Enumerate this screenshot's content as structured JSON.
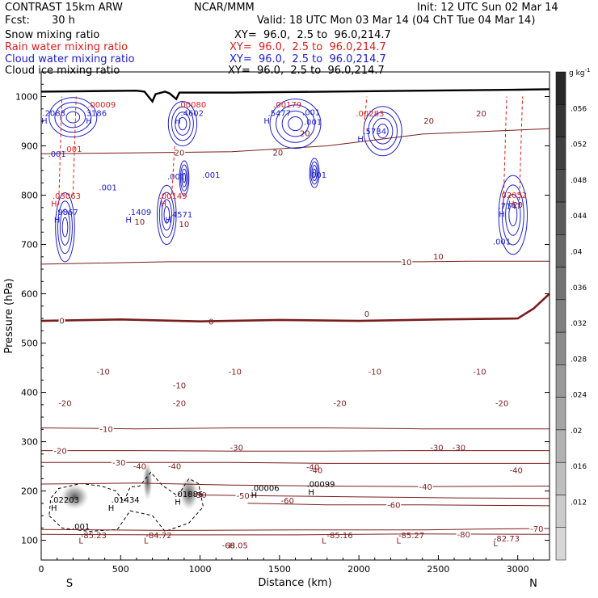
{
  "header": {
    "model": "CONTRAST 15km ARW",
    "center": "NCAR/MMM",
    "init": "Init: 12 UTC Sun 02 Mar 14",
    "fcst_label": "Fcst:",
    "fcst_value": "30 h",
    "valid": "Valid: 18 UTC Mon 03 Mar 14 (04 ChT Tue 04 Mar 14)"
  },
  "legend": [
    {
      "field": "Snow mixing ratio",
      "xy": "XY=  96.0,  2.5 to  96.0,214.7",
      "color": "#000000"
    },
    {
      "field": "Rain water mixing ratio",
      "xy": "XY=  96.0,  2.5 to  96.0,214.7",
      "color": "#d81e1e"
    },
    {
      "field": "Cloud water mixing ratio",
      "xy": "XY=  96.0,  2.5 to  96.0,214.7",
      "color": "#2020c8"
    },
    {
      "field": "Cloud ice mixing ratio",
      "xy": "XY=  96.0,  2.5 to  96.0,214.7",
      "color": "#000000"
    }
  ],
  "colorbar": {
    "unit": "g kg",
    "unit_exp": "-1",
    "labels": [
      ".056",
      ".052",
      ".048",
      ".044",
      ".04",
      ".036",
      ".032",
      ".028",
      ".024",
      ".02",
      ".016",
      ".012"
    ]
  },
  "chart_data": {
    "type": "contour",
    "xlabel": "Distance (km)",
    "ylabel": "Pressure (hPa)",
    "xlim": [
      0,
      3200
    ],
    "ylim": [
      1050,
      60
    ],
    "x_ticks": [
      0,
      500,
      1000,
      1500,
      2000,
      2500,
      3000
    ],
    "x_tick_labels": [
      "0",
      "500",
      "1000",
      "1500",
      "2000",
      "2500",
      "3000"
    ],
    "y_ticks": [
      100,
      200,
      300,
      400,
      500,
      600,
      700,
      800,
      900,
      1000
    ],
    "y_tick_labels": [
      "100",
      "200",
      "300",
      "400",
      "500",
      "600",
      "700",
      "800",
      "900",
      "1000"
    ],
    "endpoints": {
      "left": "S",
      "right": "N"
    },
    "temperature_contours": [
      {
        "level": -80,
        "label": "-80",
        "label_x": 2660,
        "p": [
          [
            0,
            112
          ],
          [
            800,
            111
          ],
          [
            1600,
            111
          ],
          [
            2400,
            113
          ],
          [
            3200,
            112
          ]
        ]
      },
      {
        "level": -70,
        "label": "-70",
        "label_x": 3120,
        "p": [
          [
            0,
            122
          ],
          [
            800,
            120
          ],
          [
            1600,
            121
          ],
          [
            2400,
            121
          ],
          [
            2800,
            123
          ],
          [
            3200,
            124
          ]
        ]
      },
      {
        "level": -60,
        "label": "-60",
        "label_x": 2220,
        "p": [
          [
            1300,
            175
          ],
          [
            1800,
            172
          ],
          [
            2400,
            172
          ],
          [
            3200,
            170
          ]
        ]
      },
      {
        "level": -50,
        "label": "-50",
        "label_x": 1270,
        "p": [
          [
            1000,
            192
          ],
          [
            1500,
            190
          ],
          [
            2000,
            188
          ],
          [
            2600,
            186
          ],
          [
            3200,
            185
          ]
        ]
      },
      {
        "level": -40,
        "label": "-40",
        "label_x": 2420,
        "p": [
          [
            0,
            214
          ],
          [
            600,
            216
          ],
          [
            1200,
            212
          ],
          [
            1800,
            210
          ],
          [
            2400,
            209
          ],
          [
            3200,
            210
          ]
        ]
      },
      {
        "level": -30,
        "label": "-30",
        "label_x": 490,
        "p": [
          [
            0,
            258
          ],
          [
            600,
            258
          ],
          [
            1200,
            258
          ],
          [
            1800,
            256
          ],
          [
            2400,
            256
          ],
          [
            3200,
            256
          ]
        ]
      },
      {
        "level": -20,
        "label": "-20",
        "label_x": 120,
        "p": [
          [
            0,
            282
          ],
          [
            600,
            282
          ],
          [
            1200,
            281
          ],
          [
            1800,
            281
          ],
          [
            2400,
            282
          ],
          [
            3200,
            282
          ]
        ]
      },
      {
        "level": -10,
        "label": "-10",
        "label_x": 410,
        "p": [
          [
            0,
            328
          ],
          [
            600,
            326
          ],
          [
            1200,
            328
          ],
          [
            1800,
            328
          ],
          [
            2400,
            326
          ],
          [
            3200,
            326
          ]
        ]
      },
      {
        "level": 0,
        "label": "0",
        "label_x": 130,
        "p": [
          [
            0,
            545
          ],
          [
            500,
            548
          ],
          [
            1000,
            544
          ],
          [
            1500,
            547
          ],
          [
            2000,
            545
          ],
          [
            2500,
            548
          ],
          [
            3000,
            550
          ],
          [
            3100,
            570
          ],
          [
            3200,
            600
          ]
        ]
      },
      {
        "level": 10,
        "label": "10",
        "label_x": 2300,
        "p": [
          [
            0,
            660
          ],
          [
            800,
            665
          ],
          [
            1600,
            665
          ],
          [
            2100,
            665
          ],
          [
            2400,
            665
          ],
          [
            2700,
            666
          ],
          [
            3200,
            666
          ]
        ]
      },
      {
        "level": 20,
        "label": "20",
        "label_x": 870,
        "p": [
          [
            0,
            884
          ],
          [
            600,
            886
          ],
          [
            1200,
            888
          ],
          [
            1800,
            900
          ],
          [
            2400,
            924
          ],
          [
            3200,
            935
          ]
        ]
      }
    ],
    "annotations": [
      {
        "text": "-85.23",
        "x": 330,
        "p": 104,
        "color": "#7a1c1c"
      },
      {
        "text": "-84.72",
        "x": 740,
        "p": 104,
        "color": "#7a1c1c"
      },
      {
        "text": "-68.05",
        "x": 1220,
        "p": 84,
        "color": "#7a1c1c"
      },
      {
        "text": "-85.16",
        "x": 1880,
        "p": 104,
        "color": "#7a1c1c"
      },
      {
        "text": "-85.27",
        "x": 2330,
        "p": 104,
        "color": "#7a1c1c"
      },
      {
        "text": "-82.73",
        "x": 2930,
        "p": 98,
        "color": "#7a1c1c"
      },
      {
        "text": ".02203",
        "x": 150,
        "p": 176,
        "color": "#000000"
      },
      {
        "text": ".01434",
        "x": 530,
        "p": 176,
        "color": "#000000"
      },
      {
        "text": ".01886",
        "x": 930,
        "p": 188,
        "color": "#000000"
      },
      {
        "text": ".00006",
        "x": 1410,
        "p": 200,
        "color": "#000000"
      },
      {
        "text": ".00099",
        "x": 1760,
        "p": 208,
        "color": "#000000"
      },
      {
        "text": ".9867",
        "x": 160,
        "p": 760,
        "color": "#2020c8"
      },
      {
        "text": ".1409",
        "x": 620,
        "p": 760,
        "color": "#2020c8"
      },
      {
        "text": ".4571",
        "x": 880,
        "p": 755,
        "color": "#2020c8"
      },
      {
        "text": ".7147",
        "x": 2950,
        "p": 772,
        "color": "#2020c8"
      },
      {
        "text": ".03063",
        "x": 160,
        "p": 793,
        "color": "#d81e1e"
      },
      {
        "text": ".00149",
        "x": 830,
        "p": 793,
        "color": "#d81e1e"
      },
      {
        "text": ".02052",
        "x": 2970,
        "p": 794,
        "color": "#d81e1e"
      },
      {
        "text": ".2083",
        "x": 80,
        "p": 961,
        "color": "#2020c8"
      },
      {
        "text": ".3186",
        "x": 340,
        "p": 961,
        "color": "#2020c8"
      },
      {
        "text": ".4602",
        "x": 950,
        "p": 961,
        "color": "#2020c8"
      },
      {
        "text": ".5477",
        "x": 1500,
        "p": 961,
        "color": "#2020c8"
      },
      {
        "text": ".5734",
        "x": 2100,
        "p": 924,
        "color": "#2020c8"
      },
      {
        "text": ".00009",
        "x": 380,
        "p": 978,
        "color": "#d81e1e"
      },
      {
        "text": ".00080",
        "x": 950,
        "p": 978,
        "color": "#d81e1e"
      },
      {
        "text": ".00179",
        "x": 1550,
        "p": 978,
        "color": "#d81e1e"
      },
      {
        "text": ".00283",
        "x": 2070,
        "p": 960,
        "color": "#d81e1e"
      },
      {
        "text": ".001",
        "x": 250,
        "p": 122,
        "color": "#000000"
      },
      {
        "text": ".001",
        "x": 2900,
        "p": 700,
        "color": "#2020c8"
      },
      {
        "text": ".001",
        "x": 420,
        "p": 810,
        "color": "#2020c8"
      },
      {
        "text": ".001",
        "x": 850,
        "p": 832,
        "color": "#2020c8"
      },
      {
        "text": ".001",
        "x": 1070,
        "p": 835,
        "color": "#2020c8"
      },
      {
        "text": ".001",
        "x": 1740,
        "p": 835,
        "color": "#2020c8"
      },
      {
        "text": ".001",
        "x": 100,
        "p": 878,
        "color": "#2020c8"
      },
      {
        "text": ".001",
        "x": 1700,
        "p": 962,
        "color": "#2020c8"
      },
      {
        "text": ".001",
        "x": 1710,
        "p": 943,
        "color": "#2020c8"
      },
      {
        "text": ".001",
        "x": 200,
        "p": 888,
        "color": "#d81e1e"
      },
      {
        "text": "10",
        "x": 620,
        "p": 740,
        "color": "#7a1c1c"
      },
      {
        "text": "10",
        "x": 900,
        "p": 735,
        "color": "#7a1c1c"
      },
      {
        "text": "20",
        "x": 1660,
        "p": 920,
        "color": "#7a1c1c"
      },
      {
        "text": "20",
        "x": 2770,
        "p": 960,
        "color": "#7a1c1c"
      },
      {
        "text": "20",
        "x": 3000,
        "p": 775,
        "color": "#7a1c1c"
      },
      {
        "text": "-50",
        "x": 1000,
        "p": 186,
        "color": "#7a1c1c"
      },
      {
        "text": "-40",
        "x": 840,
        "p": 244,
        "color": "#7a1c1c"
      },
      {
        "text": "-40",
        "x": 620,
        "p": 244,
        "color": "#7a1c1c"
      },
      {
        "text": "-40",
        "x": 1730,
        "p": 236,
        "color": "#7a1c1c"
      },
      {
        "text": "-40",
        "x": 2990,
        "p": 236,
        "color": "#7a1c1c"
      },
      {
        "text": "-60",
        "x": 1550,
        "p": 175,
        "color": "#7a1c1c"
      },
      {
        "text": "-40",
        "x": 1710,
        "p": 243,
        "color": "#7a1c1c"
      },
      {
        "text": "-30",
        "x": 2490,
        "p": 282,
        "color": "#7a1c1c"
      },
      {
        "text": "-30",
        "x": 2630,
        "p": 282,
        "color": "#7a1c1c"
      },
      {
        "text": "-20",
        "x": 1880,
        "p": 372,
        "color": "#7a1c1c"
      },
      {
        "text": "-20",
        "x": 2900,
        "p": 372,
        "color": "#7a1c1c"
      },
      {
        "text": "-10",
        "x": 870,
        "p": 408,
        "color": "#7a1c1c"
      },
      {
        "text": "-10",
        "x": 2100,
        "p": 436,
        "color": "#7a1c1c"
      },
      {
        "text": "-10",
        "x": 2760,
        "p": 436,
        "color": "#7a1c1c"
      },
      {
        "text": "0",
        "x": 1070,
        "p": 538,
        "color": "#7a1c1c"
      },
      {
        "text": "0",
        "x": 2050,
        "p": 553,
        "color": "#7a1c1c"
      },
      {
        "text": "10",
        "x": 2500,
        "p": 670,
        "color": "#7a1c1c"
      },
      {
        "text": "-20",
        "x": 150,
        "p": 372,
        "color": "#7a1c1c"
      },
      {
        "text": "-20",
        "x": 870,
        "p": 372,
        "color": "#7a1c1c"
      },
      {
        "text": "-30",
        "x": 1230,
        "p": 282,
        "color": "#7a1c1c"
      },
      {
        "text": "-10",
        "x": 390,
        "p": 436,
        "color": "#7a1c1c"
      },
      {
        "text": "-10",
        "x": 1220,
        "p": 436,
        "color": "#7a1c1c"
      },
      {
        "text": "20",
        "x": 2440,
        "p": 945,
        "color": "#7a1c1c"
      },
      {
        "text": "20",
        "x": 1490,
        "p": 880,
        "color": "#7a1c1c"
      }
    ],
    "maxima_markers": [
      {
        "text": "L",
        "x": 250,
        "p": 94,
        "color": "#7a1c1c"
      },
      {
        "text": "L",
        "x": 660,
        "p": 94,
        "color": "#7a1c1c"
      },
      {
        "text": "L",
        "x": 1780,
        "p": 94,
        "color": "#7a1c1c"
      },
      {
        "text": "L",
        "x": 2250,
        "p": 94,
        "color": "#7a1c1c"
      },
      {
        "text": "L",
        "x": 2860,
        "p": 88,
        "color": "#7a1c1c"
      },
      {
        "text": "H",
        "x": 80,
        "p": 160,
        "color": "#000000"
      },
      {
        "text": "H",
        "x": 440,
        "p": 160,
        "color": "#000000"
      },
      {
        "text": "H",
        "x": 860,
        "p": 172,
        "color": "#000000"
      },
      {
        "text": "H",
        "x": 1340,
        "p": 186,
        "color": "#000000"
      },
      {
        "text": "H",
        "x": 1700,
        "p": 192,
        "color": "#000000"
      },
      {
        "text": "H",
        "x": 100,
        "p": 744,
        "color": "#2020c8"
      },
      {
        "text": "H",
        "x": 550,
        "p": 744,
        "color": "#2020c8"
      },
      {
        "text": "H",
        "x": 800,
        "p": 744,
        "color": "#2020c8"
      },
      {
        "text": "H",
        "x": 2900,
        "p": 756,
        "color": "#2020c8"
      },
      {
        "text": "H",
        "x": 80,
        "p": 777,
        "color": "#d81e1e"
      },
      {
        "text": "H",
        "x": 770,
        "p": 777,
        "color": "#d81e1e"
      },
      {
        "text": "H",
        "x": 2960,
        "p": 777,
        "color": "#d81e1e"
      },
      {
        "text": "H",
        "x": 20,
        "p": 945,
        "color": "#2020c8"
      },
      {
        "text": "H",
        "x": 300,
        "p": 945,
        "color": "#2020c8"
      },
      {
        "text": "H",
        "x": 860,
        "p": 945,
        "color": "#2020c8"
      },
      {
        "text": "H",
        "x": 1420,
        "p": 945,
        "color": "#2020c8"
      },
      {
        "text": "H",
        "x": 2010,
        "p": 908,
        "color": "#2020c8"
      },
      {
        "text": "H",
        "x": 1200,
        "p": 84,
        "color": "#7a1c1c"
      }
    ],
    "cloud_water_regions": [
      {
        "cx": 150,
        "cp": 735,
        "rx": 60,
        "rp": 70
      },
      {
        "cx": 790,
        "cp": 760,
        "rx": 60,
        "rp": 60
      },
      {
        "cx": 2970,
        "cp": 760,
        "rx": 90,
        "rp": 80
      },
      {
        "cx": 200,
        "cp": 958,
        "rx": 150,
        "rp": 40
      },
      {
        "cx": 890,
        "cp": 945,
        "rx": 90,
        "rp": 45
      },
      {
        "cx": 1600,
        "cp": 945,
        "rx": 160,
        "rp": 50
      },
      {
        "cx": 2150,
        "cp": 930,
        "rx": 120,
        "rp": 50
      },
      {
        "cx": 1720,
        "cp": 845,
        "rx": 30,
        "rp": 30
      },
      {
        "cx": 900,
        "cp": 835,
        "rx": 30,
        "rp": 35
      }
    ],
    "snow_shading": [
      {
        "cx": 210,
        "cp": 188,
        "rx": 90,
        "rp": 26
      },
      {
        "cx": 670,
        "cp": 220,
        "rx": 30,
        "rp": 40
      },
      {
        "cx": 930,
        "cp": 195,
        "rx": 60,
        "rp": 34
      }
    ],
    "cloud_ice_outline": [
      [
        50,
        150
      ],
      [
        130,
        125
      ],
      [
        300,
        118
      ],
      [
        480,
        122
      ],
      [
        560,
        160
      ],
      [
        700,
        150
      ],
      [
        780,
        118
      ],
      [
        930,
        135
      ],
      [
        1020,
        168
      ],
      [
        990,
        215
      ],
      [
        930,
        225
      ],
      [
        860,
        190
      ],
      [
        760,
        212
      ],
      [
        690,
        238
      ],
      [
        620,
        210
      ],
      [
        560,
        208
      ],
      [
        520,
        178
      ],
      [
        470,
        200
      ],
      [
        380,
        210
      ],
      [
        250,
        215
      ],
      [
        110,
        205
      ],
      [
        60,
        185
      ],
      [
        50,
        150
      ]
    ],
    "terrain": [
      [
        0,
        1010
      ],
      [
        600,
        1012
      ],
      [
        650,
        1010
      ],
      [
        700,
        990
      ],
      [
        720,
        1005
      ],
      [
        780,
        1010
      ],
      [
        810,
        1006
      ],
      [
        850,
        995
      ],
      [
        870,
        1008
      ],
      [
        1200,
        1008
      ],
      [
        1800,
        1010
      ],
      [
        2400,
        1012
      ],
      [
        3000,
        1014
      ],
      [
        3200,
        1015
      ]
    ]
  }
}
